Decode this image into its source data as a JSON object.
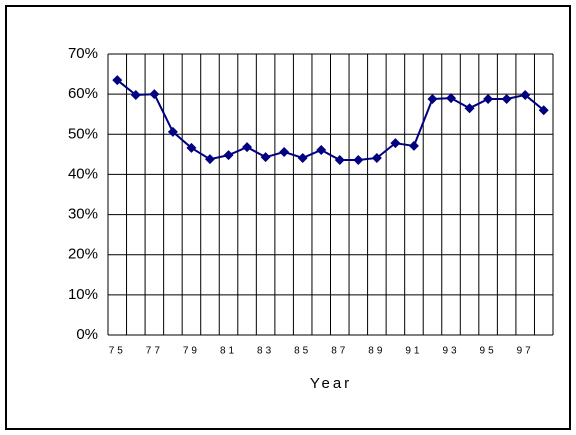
{
  "chart_data": {
    "type": "line",
    "x_label": "Year",
    "categories": [
      "75",
      null,
      "77",
      null,
      "79",
      null,
      "81",
      null,
      "83",
      null,
      "85",
      null,
      "87",
      null,
      "89",
      null,
      "91",
      null,
      "93",
      null,
      "95",
      null,
      "97",
      null
    ],
    "series": [
      {
        "color": "#000080",
        "values": [
          63.5,
          59.8,
          60,
          50.6,
          46.6,
          43.8,
          44.8,
          46.8,
          44.3,
          45.6,
          44.1,
          46.1,
          43.6,
          43.6,
          44.1,
          47.8,
          47.1,
          58.8,
          59,
          56.5,
          58.8,
          58.8,
          59.8,
          56
        ]
      }
    ],
    "ylim": [
      0,
      70
    ],
    "yticks": [
      {
        "value": 0,
        "label": "0%"
      },
      {
        "value": 10,
        "label": "10%"
      },
      {
        "value": 20,
        "label": "20%"
      },
      {
        "value": 30,
        "label": "30%"
      },
      {
        "value": 40,
        "label": "40%"
      },
      {
        "value": 50,
        "label": "50%"
      },
      {
        "value": 60,
        "label": "60%"
      },
      {
        "value": 70,
        "label": "70%"
      }
    ],
    "grid": true
  }
}
